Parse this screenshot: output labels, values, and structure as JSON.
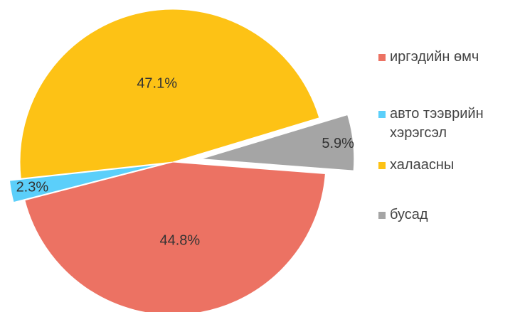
{
  "chart_data": {
    "type": "pie",
    "categories": [
      "иргэдийн өмч",
      "авто тээврийн хэрэгсэл",
      "халаасны",
      "бусад"
    ],
    "values": [
      44.8,
      2.3,
      47.1,
      5.9
    ],
    "value_labels": [
      "44.8%",
      "2.3%",
      "47.1%",
      "5.9%"
    ],
    "colors": [
      "#ec7263",
      "#5bcffa",
      "#fdc215",
      "#a5a5a5"
    ],
    "legend": "right"
  }
}
